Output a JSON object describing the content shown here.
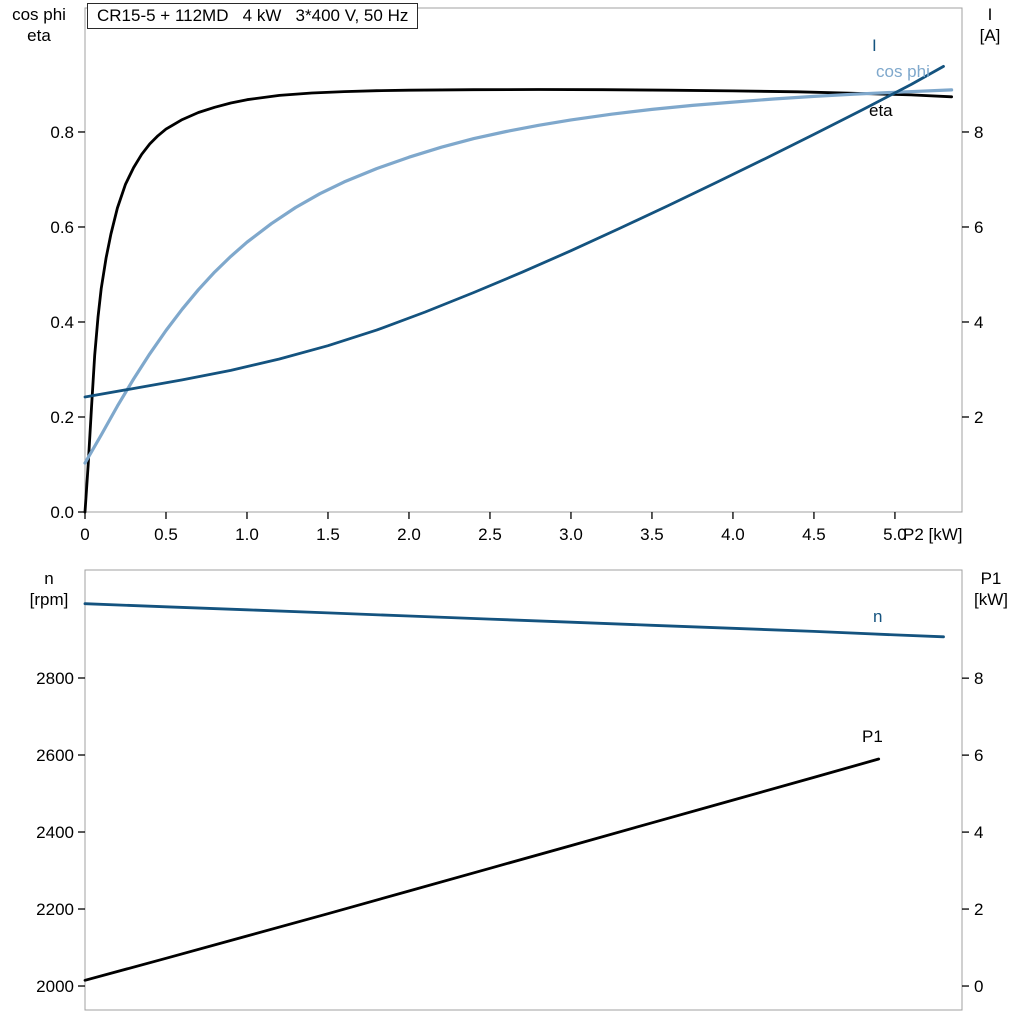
{
  "title": "CR15-5 + 112MD   4 kW   3*400 V, 50 Hz",
  "colors": {
    "black": "#000000",
    "dark_blue": "#14537f",
    "light_blue": "#7fa8cc",
    "frame": "#a0a0a0"
  },
  "labels": {
    "cos_phi": "cos phi",
    "eta": "eta",
    "i": "I",
    "a_unit": "[A]",
    "p2": "P2 [kW]",
    "n": "n",
    "rpm_unit": "[rpm]",
    "p1": "P1",
    "kw_unit": "[kW]"
  },
  "chart_data": [
    {
      "type": "line",
      "panel": "top",
      "title": "CR15-5 + 112MD   4 kW   3*400 V, 50 Hz",
      "x_axis": {
        "label": "P2 [kW]",
        "tick_values": [
          0,
          0.5,
          1,
          1.5,
          2,
          2.5,
          3,
          3.5,
          4,
          4.5,
          5
        ],
        "tick_labels": [
          "0",
          "0.5",
          "1.0",
          "1.5",
          "2.0",
          "2.5",
          "3.0",
          "3.5",
          "4.0",
          "4.5",
          "5.0"
        ],
        "range": [
          0,
          5.414
        ]
      },
      "left_axis": {
        "label": "cos phi / eta",
        "tick_values": [
          0,
          0.2,
          0.4,
          0.6,
          0.8
        ],
        "tick_labels": [
          "0.0",
          "0.2",
          "0.4",
          "0.6",
          "0.8"
        ],
        "range": [
          0,
          1.061
        ]
      },
      "right_axis": {
        "label": "I [A]",
        "tick_values": [
          2,
          4,
          6,
          8
        ],
        "tick_labels": [
          "2",
          "4",
          "6",
          "8"
        ],
        "range": [
          0,
          10.61
        ]
      },
      "legend_position": "right-end-of-curves",
      "grid": false,
      "series": [
        {
          "name": "eta",
          "axis": "left",
          "color": "black",
          "points": [
            [
              0,
              0
            ],
            [
              0.02,
              0.1
            ],
            [
              0.04,
              0.22
            ],
            [
              0.06,
              0.33
            ],
            [
              0.08,
              0.41
            ],
            [
              0.1,
              0.47
            ],
            [
              0.13,
              0.535
            ],
            [
              0.16,
              0.585
            ],
            [
              0.2,
              0.64
            ],
            [
              0.25,
              0.69
            ],
            [
              0.3,
              0.725
            ],
            [
              0.35,
              0.753
            ],
            [
              0.4,
              0.775
            ],
            [
              0.45,
              0.792
            ],
            [
              0.5,
              0.806
            ],
            [
              0.6,
              0.826
            ],
            [
              0.7,
              0.841
            ],
            [
              0.8,
              0.852
            ],
            [
              0.9,
              0.861
            ],
            [
              1.0,
              0.868
            ],
            [
              1.2,
              0.877
            ],
            [
              1.4,
              0.882
            ],
            [
              1.6,
              0.885
            ],
            [
              1.8,
              0.887
            ],
            [
              2.0,
              0.888
            ],
            [
              2.4,
              0.889
            ],
            [
              2.8,
              0.8895
            ],
            [
              3.2,
              0.889
            ],
            [
              3.6,
              0.888
            ],
            [
              4.0,
              0.8865
            ],
            [
              4.4,
              0.8845
            ],
            [
              4.8,
              0.881
            ],
            [
              5.1,
              0.878
            ],
            [
              5.35,
              0.874
            ]
          ]
        },
        {
          "name": "cos phi",
          "axis": "left",
          "color": "light_blue",
          "points": [
            [
              0,
              0.103
            ],
            [
              0.1,
              0.162
            ],
            [
              0.2,
              0.223
            ],
            [
              0.3,
              0.28
            ],
            [
              0.4,
              0.333
            ],
            [
              0.5,
              0.382
            ],
            [
              0.6,
              0.427
            ],
            [
              0.7,
              0.468
            ],
            [
              0.8,
              0.505
            ],
            [
              0.9,
              0.538
            ],
            [
              1.0,
              0.568
            ],
            [
              1.15,
              0.607
            ],
            [
              1.3,
              0.641
            ],
            [
              1.45,
              0.67
            ],
            [
              1.6,
              0.695
            ],
            [
              1.8,
              0.723
            ],
            [
              2.0,
              0.747
            ],
            [
              2.2,
              0.768
            ],
            [
              2.4,
              0.786
            ],
            [
              2.6,
              0.801
            ],
            [
              2.8,
              0.814
            ],
            [
              3.0,
              0.8255
            ],
            [
              3.25,
              0.8375
            ],
            [
              3.5,
              0.8475
            ],
            [
              3.75,
              0.856
            ],
            [
              4.0,
              0.863
            ],
            [
              4.25,
              0.8695
            ],
            [
              4.5,
              0.875
            ],
            [
              4.75,
              0.8795
            ],
            [
              5.0,
              0.8835
            ],
            [
              5.35,
              0.8885
            ]
          ]
        },
        {
          "name": "I",
          "axis": "right",
          "color": "dark_blue",
          "points": [
            [
              0,
              2.42
            ],
            [
              0.3,
              2.6
            ],
            [
              0.6,
              2.78
            ],
            [
              0.9,
              2.98
            ],
            [
              1.2,
              3.22
            ],
            [
              1.5,
              3.5
            ],
            [
              1.8,
              3.83
            ],
            [
              2.1,
              4.21
            ],
            [
              2.4,
              4.62
            ],
            [
              2.7,
              5.05
            ],
            [
              3.0,
              5.5
            ],
            [
              3.3,
              5.97
            ],
            [
              3.6,
              6.45
            ],
            [
              3.9,
              6.94
            ],
            [
              4.2,
              7.44
            ],
            [
              4.5,
              7.95
            ],
            [
              4.8,
              8.47
            ],
            [
              5.1,
              9.0
            ],
            [
              5.3,
              9.38
            ]
          ]
        }
      ]
    },
    {
      "type": "line",
      "panel": "bottom",
      "x_axis": {
        "label": "",
        "tick_values": [],
        "tick_labels": [],
        "range": [
          0,
          5.414
        ]
      },
      "left_axis": {
        "label": "n [rpm]",
        "tick_values": [
          2000,
          2200,
          2400,
          2600,
          2800
        ],
        "tick_labels": [
          "2000",
          "2200",
          "2400",
          "2600",
          "2800"
        ],
        "range": [
          1937.7,
          3080.5
        ]
      },
      "right_axis": {
        "label": "P1 [kW]",
        "tick_values": [
          0,
          2,
          4,
          6,
          8
        ],
        "tick_labels": [
          "0",
          "2",
          "4",
          "6",
          "8"
        ],
        "range": [
          -0.623,
          10.81
        ]
      },
      "grid": false,
      "series": [
        {
          "name": "n",
          "axis": "left",
          "color": "dark_blue",
          "points": [
            [
              0,
              2993
            ],
            [
              0.5,
              2985
            ],
            [
              1.0,
              2977
            ],
            [
              1.5,
              2969
            ],
            [
              2.0,
              2961
            ],
            [
              2.5,
              2953
            ],
            [
              3.0,
              2945
            ],
            [
              3.5,
              2937
            ],
            [
              4.0,
              2929
            ],
            [
              4.5,
              2921
            ],
            [
              5.0,
              2912
            ],
            [
              5.3,
              2907
            ]
          ]
        },
        {
          "name": "P1",
          "axis": "right",
          "color": "black",
          "points": [
            [
              0,
              0.15
            ],
            [
              0.5,
              0.72
            ],
            [
              1.0,
              1.3
            ],
            [
              1.5,
              1.88
            ],
            [
              2.0,
              2.47
            ],
            [
              2.5,
              3.06
            ],
            [
              3.0,
              3.65
            ],
            [
              3.5,
              4.24
            ],
            [
              4.0,
              4.83
            ],
            [
              4.5,
              5.42
            ],
            [
              4.9,
              5.9
            ]
          ]
        }
      ]
    }
  ]
}
